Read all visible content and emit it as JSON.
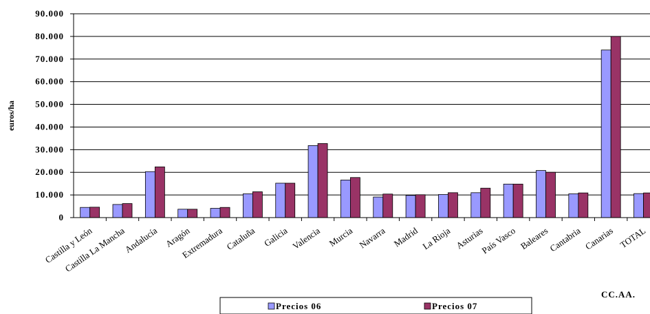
{
  "chart_data": {
    "type": "bar",
    "title": "",
    "ylabel": "euros/ha",
    "xlabel": "CC.AA.",
    "ylim": [
      0,
      90000
    ],
    "yticks": [
      0,
      10000,
      20000,
      30000,
      40000,
      50000,
      60000,
      70000,
      80000,
      90000
    ],
    "ytick_labels": [
      "0",
      "10.000",
      "20.000",
      "30.000",
      "40.000",
      "50.000",
      "60.000",
      "70.000",
      "80.000",
      "90.000"
    ],
    "grid": true,
    "legend_position": "bottom",
    "categories": [
      "Castilla y León",
      "Castilla La Mancha",
      "Andalucía",
      "Aragón",
      "Extremadura",
      "Cataluña",
      "Galicia",
      "Valencia",
      "Murcia",
      "Navarra",
      "Madrid",
      "La Rioja",
      "Asturias",
      "País Vasco",
      "Baleares",
      "Cantabria",
      "Canarias",
      "TOTAL"
    ],
    "series": [
      {
        "name": "Precios 06",
        "color": "#9999ff",
        "values": [
          4500,
          5800,
          20300,
          3700,
          4100,
          10500,
          15200,
          31800,
          16600,
          9100,
          9800,
          10200,
          11000,
          14800,
          20800,
          10500,
          74000,
          10600
        ]
      },
      {
        "name": "Precios 07",
        "color": "#993366",
        "values": [
          4600,
          6200,
          22400,
          3700,
          4500,
          11400,
          15200,
          32700,
          17700,
          10400,
          10100,
          11000,
          13000,
          14800,
          20000,
          10900,
          80000,
          10900
        ]
      }
    ]
  }
}
